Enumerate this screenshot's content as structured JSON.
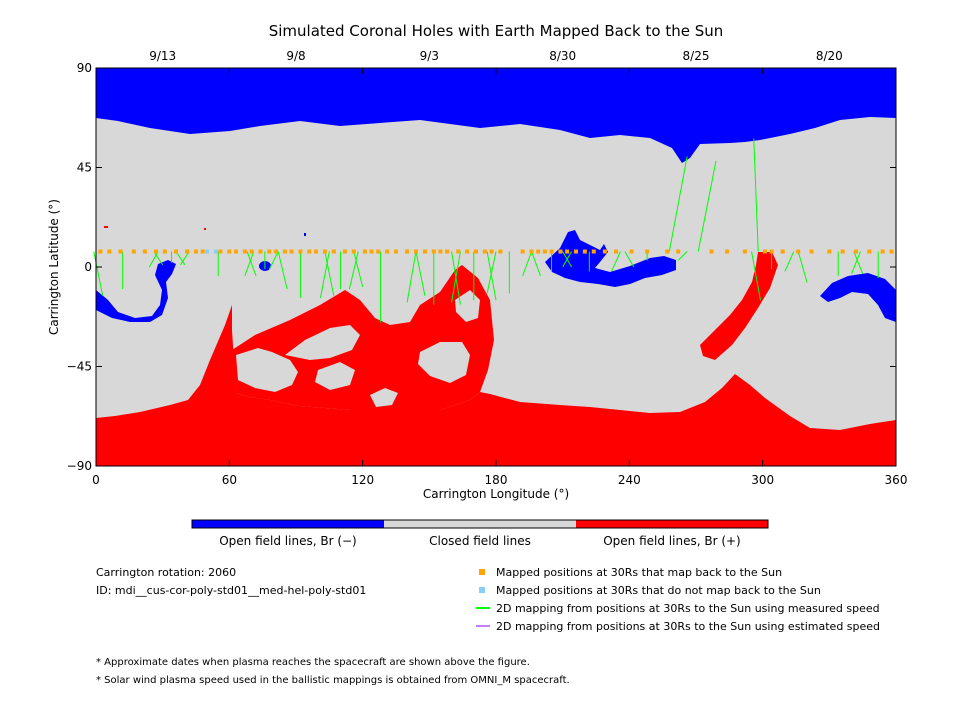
{
  "chart_data": {
    "type": "heatmap",
    "title": "Simulated Coronal Holes with Earth Mapped Back to the Sun",
    "xlabel": "Carrington Longitude (°)",
    "ylabel": "Carrington Latitude (°)",
    "xlim": [
      0,
      360
    ],
    "ylim": [
      -90,
      90
    ],
    "x_ticks": [
      "0",
      "60",
      "120",
      "180",
      "240",
      "300",
      "360"
    ],
    "y_ticks": [
      "90",
      "45",
      "0",
      "−45",
      "−90"
    ],
    "top_date_labels": [
      {
        "lon": 30,
        "label": "9/13"
      },
      {
        "lon": 90,
        "label": "9/8"
      },
      {
        "lon": 150,
        "label": "9/3"
      },
      {
        "lon": 210,
        "label": "8/30"
      },
      {
        "lon": 270,
        "label": "8/25"
      },
      {
        "lon": 330,
        "label": "8/20"
      }
    ],
    "colors": {
      "open_negative": "#0000ff",
      "closed": "#d8d8d8",
      "open_positive": "#ff0000",
      "mapped_back": "#ffa500",
      "not_mapped": "#87cefa",
      "measured_line": "#00ff00",
      "estimated_line": "#c080ff"
    },
    "regions": [
      {
        "polarity": "negative",
        "name": "north polar coronal hole",
        "lat_range": [
          60,
          90
        ]
      },
      {
        "polarity": "positive",
        "name": "south polar coronal hole",
        "lat_range": [
          -90,
          -63
        ]
      },
      {
        "polarity": "negative",
        "name": "extension lon 205-260",
        "lon_range": [
          203,
          262
        ],
        "lat_range": [
          -8,
          18
        ]
      },
      {
        "polarity": "negative",
        "name": "equatorial hole lon 325-360",
        "lon_range": [
          325,
          360
        ],
        "lat_range": [
          -25,
          0
        ]
      },
      {
        "polarity": "positive",
        "name": "equatorial extension lon 60-180",
        "lon_range": [
          60,
          180
        ],
        "lat_range": [
          -60,
          2
        ]
      },
      {
        "polarity": "positive",
        "name": "extension lon 270-305",
        "lon_range": [
          270,
          305
        ],
        "lat_range": [
          -45,
          7
        ]
      }
    ],
    "mapped_positions_lat": 7,
    "mapped_positions_lon": [
      2,
      6,
      11,
      17,
      22,
      27,
      31,
      36,
      41,
      45,
      48,
      56,
      60,
      63,
      67,
      70,
      74,
      78,
      81,
      85,
      88,
      92,
      96,
      99,
      103,
      107,
      112,
      116,
      121,
      124,
      127,
      131,
      135,
      140,
      144,
      148,
      152,
      155,
      158,
      163,
      167,
      171,
      175,
      178,
      182,
      192,
      196,
      199,
      202,
      205,
      209,
      212,
      216,
      220,
      224,
      229,
      234,
      241,
      248,
      257,
      262,
      277,
      284,
      292,
      301,
      304,
      309,
      316,
      322,
      330,
      336,
      342,
      348,
      354,
      358
    ],
    "not_mapped_lon": [
      50,
      54
    ],
    "mapping_lines": [
      [
        3,
        7,
        -13
      ],
      [
        12,
        7,
        -10
      ],
      [
        24,
        7,
        0
      ],
      [
        30,
        7,
        1
      ],
      [
        34,
        7,
        2
      ],
      [
        38,
        7,
        1
      ],
      [
        40,
        7,
        1
      ],
      [
        55,
        7,
        -4
      ],
      [
        67,
        7,
        -4
      ],
      [
        72,
        7,
        -4
      ],
      [
        76,
        7,
        -1
      ],
      [
        78,
        7,
        -1
      ],
      [
        86,
        7,
        -10
      ],
      [
        92,
        7,
        -14
      ],
      [
        101,
        7,
        -14
      ],
      [
        107,
        7,
        -13
      ],
      [
        110,
        7,
        -10
      ],
      [
        114,
        7,
        -10
      ],
      [
        120,
        7,
        -9
      ],
      [
        128,
        7,
        -25
      ],
      [
        140,
        7,
        -16
      ],
      [
        148,
        7,
        -13
      ],
      [
        152,
        7,
        -17
      ],
      [
        160,
        7,
        -16
      ],
      [
        164,
        7,
        -17
      ],
      [
        170,
        7,
        -15
      ],
      [
        176,
        7,
        -12
      ],
      [
        180,
        7,
        -15
      ],
      [
        186,
        7,
        -12
      ],
      [
        192,
        7,
        -4
      ],
      [
        200,
        7,
        -4
      ],
      [
        205,
        7,
        -2
      ],
      [
        210,
        7,
        0
      ],
      [
        214,
        7,
        0
      ],
      [
        222,
        7,
        -2
      ],
      [
        232,
        7,
        -2
      ],
      [
        242,
        7,
        0
      ],
      [
        248,
        7,
        3
      ],
      [
        262,
        7,
        3
      ],
      [
        266,
        7,
        50
      ],
      [
        279,
        7,
        48
      ],
      [
        296,
        7,
        58
      ],
      [
        299,
        7,
        -15
      ],
      [
        304,
        7,
        -1
      ],
      [
        310,
        7,
        -2
      ],
      [
        320,
        7,
        -7
      ],
      [
        334,
        7,
        -4
      ],
      [
        340,
        7,
        -3
      ],
      [
        345,
        7,
        -3
      ],
      [
        352,
        7,
        -5
      ]
    ],
    "colorbar_labels": [
      "Open field lines, Br (−)",
      "Closed field lines",
      "Open field lines, Br (+)"
    ]
  },
  "info": {
    "rotation": "Carrington rotation: 2060",
    "id": "ID: mdi__cus-cor-poly-std01__med-hel-poly-std01"
  },
  "legend": {
    "mapped": "Mapped positions at 30Rs that map back to the Sun",
    "not_mapped": "Mapped positions at 30Rs that do not map back to the Sun",
    "measured": "2D mapping from positions at 30Rs to the Sun using measured speed",
    "estimated": "2D mapping from positions at 30Rs to the Sun using estimated speed"
  },
  "notes": {
    "dates": "* Approximate dates when plasma reaches the spacecraft are shown above the figure.",
    "speed": "* Solar wind plasma speed used in the ballistic mappings is obtained from OMNI_M spacecraft."
  }
}
